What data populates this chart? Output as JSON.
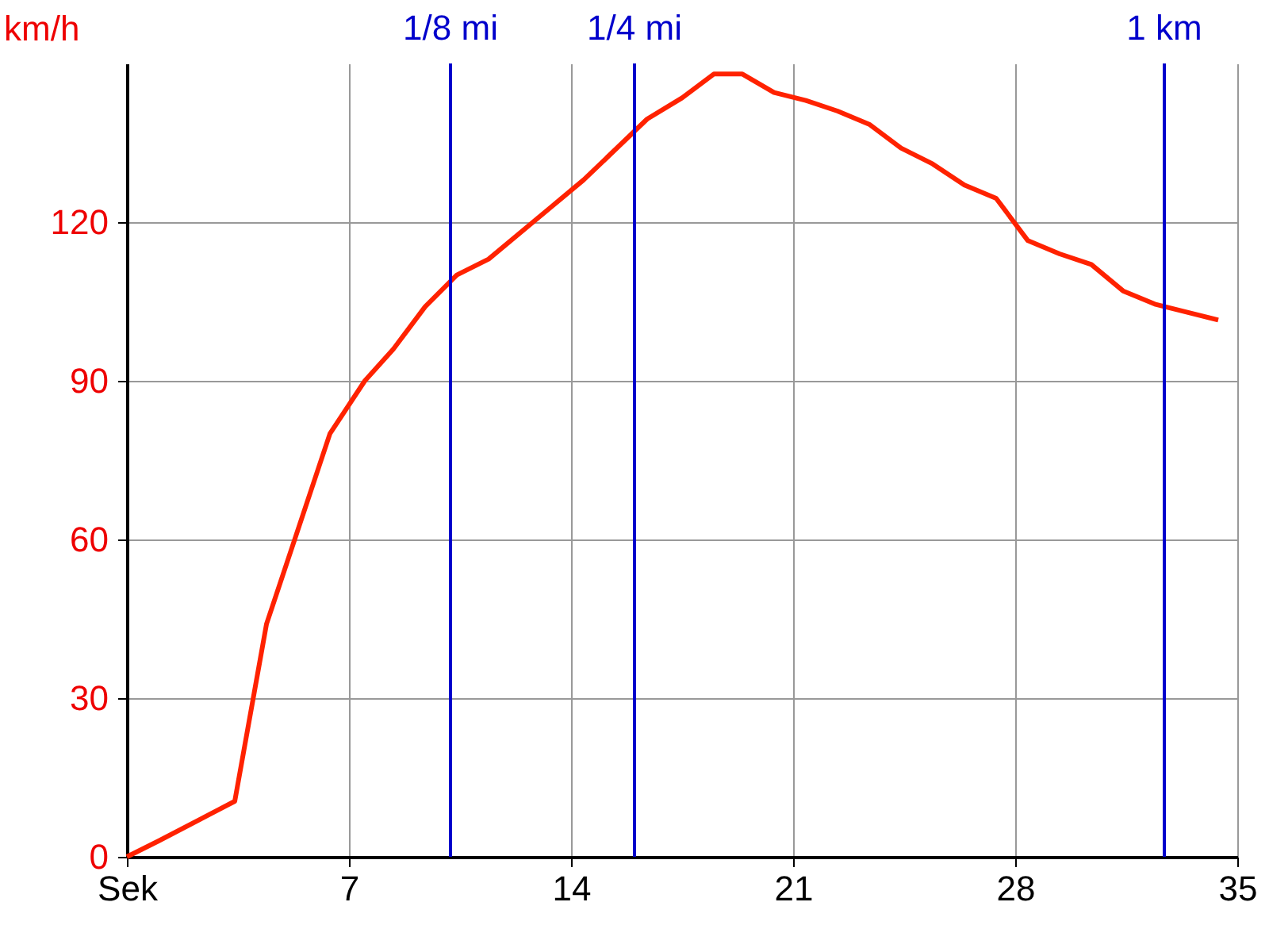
{
  "chart_data": {
    "type": "line",
    "ylabel": "km/h",
    "xlim": [
      0,
      35
    ],
    "ylim": [
      0,
      150
    ],
    "xticks": [
      {
        "value": 0,
        "label": "Sek"
      },
      7,
      14,
      21,
      28,
      35
    ],
    "yticks": [
      0,
      30,
      60,
      90,
      120
    ],
    "grid": true,
    "marker": "none",
    "line_style": "solid",
    "series": [
      {
        "color": "#ff2200",
        "x": [
          0,
          1,
          3.4,
          4.4,
          6.4,
          7.5,
          8.4,
          9.4,
          10.4,
          11.4,
          13.4,
          14.4,
          16.4,
          17.5,
          18.5,
          19.4,
          20.4,
          21.4,
          22.4,
          23.4,
          24.4,
          25.4,
          26.4,
          27.4,
          28.4,
          29.4,
          30.4,
          31.4,
          32.4,
          33.4,
          34.4
        ],
        "values": [
          0,
          3,
          10.5,
          44,
          80,
          90,
          96,
          104,
          110,
          113,
          123,
          128,
          139.5,
          143.5,
          148,
          148,
          144.5,
          143,
          141,
          138.5,
          134,
          131,
          127,
          124.5,
          116.5,
          114,
          112,
          107,
          104.5,
          103,
          101.5
        ]
      }
    ],
    "ref_lines": [
      {
        "axis": "x",
        "value": 10.2,
        "label": "1/8 mi",
        "color": "#0000cc"
      },
      {
        "axis": "x",
        "value": 16.0,
        "label": "1/4 mi",
        "color": "#0000cc"
      },
      {
        "axis": "x",
        "value": 32.7,
        "label": "1 km",
        "color": "#0000cc"
      }
    ]
  }
}
